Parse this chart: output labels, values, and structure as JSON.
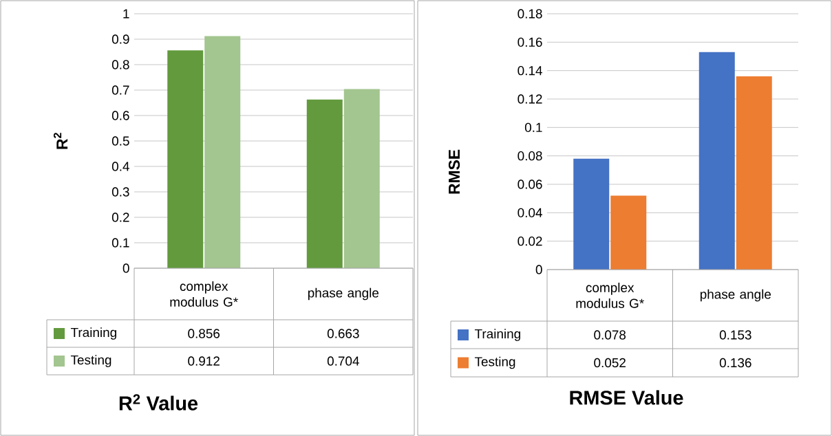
{
  "chart_data": [
    {
      "type": "bar",
      "title": "R$^{2}$ Value",
      "ylabel": "R$^{2}$",
      "categories": [
        "complex modulus G*",
        "phase angle"
      ],
      "series": [
        {
          "name": "Training",
          "color": "#629a3d",
          "values": [
            0.856,
            0.663
          ]
        },
        {
          "name": "Testing",
          "color": "#a3c58f",
          "values": [
            0.912,
            0.704
          ]
        }
      ],
      "ylim": [
        0,
        1
      ],
      "yticks": [
        0,
        0.1,
        0.2,
        0.3,
        0.4,
        0.5,
        0.6,
        0.7,
        0.8,
        0.9,
        1
      ],
      "grid": "y",
      "legend": "bottom",
      "data_labels": true
    },
    {
      "type": "bar",
      "title": "RMSE Value",
      "ylabel": "RMSE",
      "categories": [
        "complex modulus G*",
        "phase angle"
      ],
      "series": [
        {
          "name": "Training",
          "color": "#4472c4",
          "values": [
            0.078,
            0.153
          ]
        },
        {
          "name": "Testing",
          "color": "#ed7d31",
          "values": [
            0.052,
            0.136
          ]
        }
      ],
      "ylim": [
        0,
        0.18
      ],
      "yticks": [
        0,
        0.02,
        0.04,
        0.06,
        0.08,
        0.1,
        0.12,
        0.14,
        0.16,
        0.18
      ],
      "grid": "y",
      "legend": "bottom",
      "data_labels": true
    }
  ]
}
